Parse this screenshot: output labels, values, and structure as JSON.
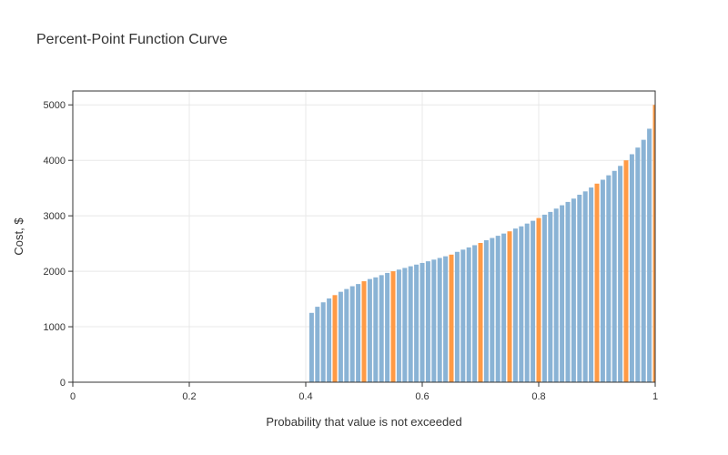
{
  "chart_data": {
    "type": "bar",
    "title": "Percent-Point Function Curve",
    "xlabel": "Probability that value is not exceeded",
    "ylabel": "Cost, $",
    "xlim": [
      0,
      1
    ],
    "ylim": [
      0,
      5250
    ],
    "x_ticks": [
      0,
      0.2,
      0.4,
      0.6,
      0.8,
      1
    ],
    "x_tick_labels": [
      "0",
      "0.2",
      "0.4",
      "0.6",
      "0.8",
      "1"
    ],
    "y_ticks": [
      0,
      1000,
      2000,
      3000,
      4000,
      5000
    ],
    "y_tick_labels": [
      "0",
      "1000",
      "2000",
      "3000",
      "4000",
      "5000"
    ],
    "grid": true,
    "legend": "none",
    "colors": {
      "default": "#8ab3d5",
      "highlight": "#ff9a45",
      "grid": "#e8e8e8",
      "axis": "#333333"
    },
    "series": [
      {
        "x": [
          0.41,
          0.42,
          0.43,
          0.44,
          0.45,
          0.46,
          0.47,
          0.48,
          0.49,
          0.5,
          0.51,
          0.52,
          0.53,
          0.54,
          0.55,
          0.56,
          0.57,
          0.58,
          0.59,
          0.6,
          0.61,
          0.62,
          0.63,
          0.64,
          0.65,
          0.66,
          0.67,
          0.68,
          0.69,
          0.7,
          0.71,
          0.72,
          0.73,
          0.74,
          0.75,
          0.76,
          0.77,
          0.78,
          0.79,
          0.8,
          0.81,
          0.82,
          0.83,
          0.84,
          0.85,
          0.86,
          0.87,
          0.88,
          0.89,
          0.9,
          0.91,
          0.92,
          0.93,
          0.94,
          0.95,
          0.96,
          0.97,
          0.98,
          0.99,
          1.0
        ],
        "values": [
          1250,
          1360,
          1440,
          1510,
          1570,
          1630,
          1680,
          1730,
          1770,
          1820,
          1860,
          1890,
          1930,
          1970,
          2000,
          2030,
          2060,
          2090,
          2120,
          2150,
          2180,
          2210,
          2240,
          2270,
          2300,
          2350,
          2390,
          2430,
          2470,
          2510,
          2560,
          2600,
          2640,
          2680,
          2720,
          2770,
          2810,
          2860,
          2910,
          2960,
          3020,
          3070,
          3130,
          3190,
          3250,
          3310,
          3380,
          3440,
          3510,
          3580,
          3650,
          3730,
          3810,
          3900,
          4000,
          4110,
          4230,
          4370,
          4570,
          5000
        ],
        "highlight_x": [
          0.45,
          0.5,
          0.55,
          0.65,
          0.7,
          0.75,
          0.8,
          0.9,
          0.95,
          1.0
        ]
      }
    ]
  }
}
